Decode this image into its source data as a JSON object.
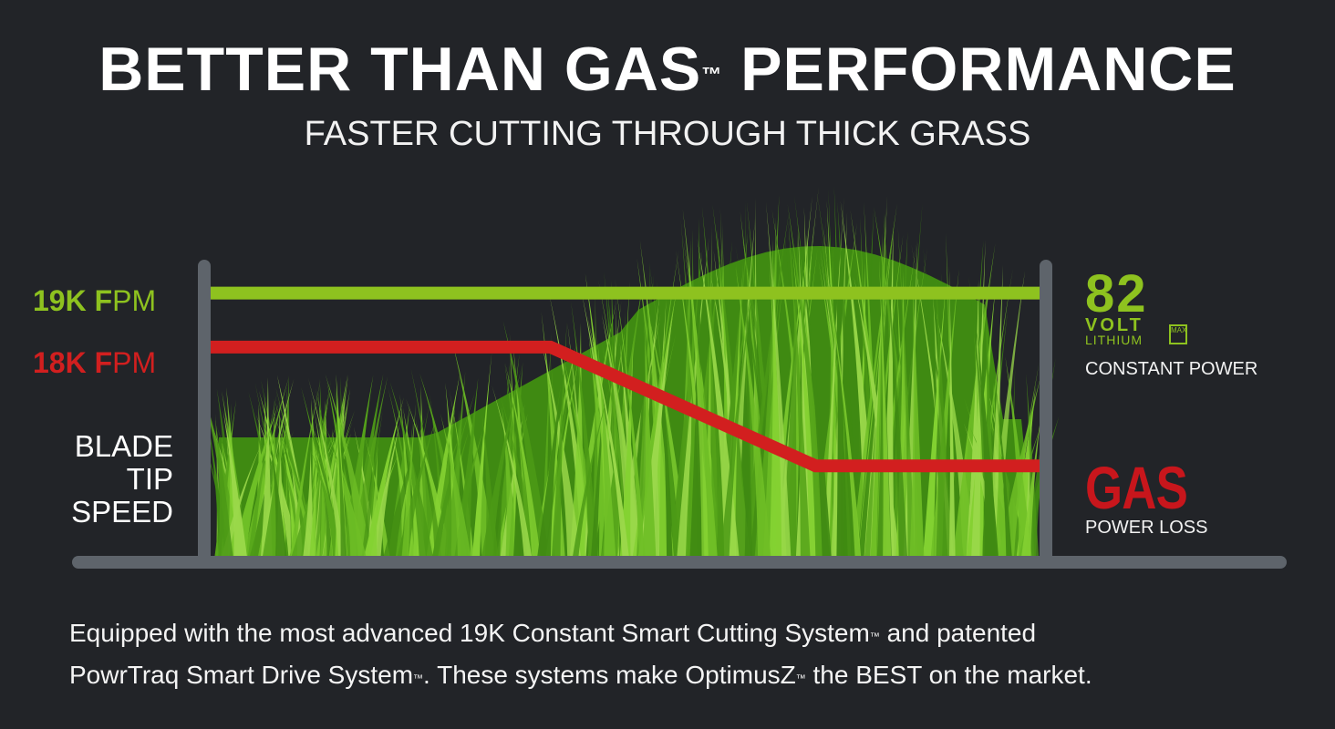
{
  "header": {
    "title_pre": "BETTER THAN GAS",
    "title_tm": "™",
    "title_post": " PERFORMANCE",
    "subtitle": "FASTER CUTTING THROUGH THICK GRASS"
  },
  "labels": {
    "green_bold": "19K F",
    "green_rest": "PM",
    "red_bold": "18K F",
    "red_rest": "PM",
    "ylabel": [
      "BLADE",
      "TIP",
      "SPEED"
    ]
  },
  "badge": {
    "number": "82",
    "volt": "VOLT",
    "lithium": "LITHIUM",
    "max": "MAX",
    "caption": "CONSTANT POWER"
  },
  "gas": {
    "word": "GAS",
    "caption": "POWER LOSS"
  },
  "description": {
    "line1_pre": "Equipped with the most advanced 19K Constant Smart Cutting System",
    "tm": "™",
    "line1_post": " and patented",
    "line2_pre": "PowrTraq Smart Drive System",
    "line2_mid": ". These systems make OptimusZ",
    "line2_post": " the BEST on the market."
  },
  "colors": {
    "background": "#222428",
    "green": "#8ec21f",
    "red": "#d21f1f",
    "axis": "#5e646b",
    "grass_dark": "#3f8a12",
    "grass_light": "#9ad84a"
  },
  "chart_data": {
    "type": "line",
    "ylabel": "BLADE TIP SPEED",
    "x": [
      0,
      0.41,
      0.73,
      1
    ],
    "series": [
      {
        "name": "19K FPM",
        "values": [
          19,
          19,
          19,
          19
        ]
      },
      {
        "name": "18K FPM",
        "values": [
          18,
          18,
          15.8,
          15.8
        ]
      }
    ],
    "ylim": [
      14.1,
      19.5
    ],
    "grid": false
  }
}
